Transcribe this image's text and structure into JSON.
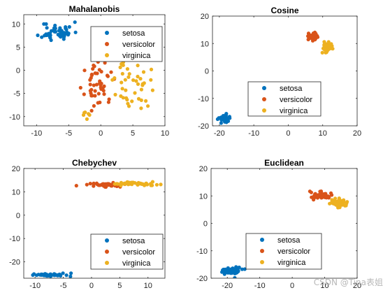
{
  "colors": {
    "setosa": "#0072BD",
    "versicolor": "#D95319",
    "virginica": "#EDB120"
  },
  "watermark": "CSDN @Tina表姐",
  "chart_data": [
    {
      "type": "scatter",
      "title": "Mahalanobis",
      "xlim": [
        -12,
        10
      ],
      "ylim": [
        -12,
        12
      ],
      "xticks": [
        -10,
        -5,
        0,
        5,
        10
      ],
      "yticks": [
        -10,
        -5,
        0,
        5,
        10
      ],
      "legend_position": "top-right",
      "series": [
        {
          "name": "setosa",
          "clusters": [
            {
              "cx": -6.8,
              "cy": 8.3,
              "sx": 1.6,
              "sy": 1.4,
              "n": 50,
              "seed": 11
            }
          ]
        },
        {
          "name": "versicolor",
          "clusters": [
            {
              "cx": -0.3,
              "cy": -3.2,
              "sx": 1.4,
              "sy": 2.9,
              "n": 50,
              "seed": 23
            }
          ]
        },
        {
          "name": "virginica",
          "clusters": [
            {
              "cx": 5.0,
              "cy": -3.2,
              "sx": 1.8,
              "sy": 3.5,
              "n": 44,
              "seed": 37
            },
            {
              "cx": -2.5,
              "cy": -9.8,
              "sx": 0.6,
              "sy": 1.0,
              "n": 6,
              "seed": 41
            }
          ]
        }
      ]
    },
    {
      "type": "scatter",
      "title": "Cosine",
      "xlim": [
        -22,
        20
      ],
      "ylim": [
        -20,
        20
      ],
      "xticks": [
        -20,
        -10,
        0,
        10,
        20
      ],
      "yticks": [
        -20,
        -10,
        0,
        10,
        20
      ],
      "legend_position": "bottom-center",
      "series": [
        {
          "name": "setosa",
          "clusters": [
            {
              "cx": -18.5,
              "cy": -17.2,
              "sx": 1.0,
              "sy": 1.0,
              "n": 50,
              "seed": 53
            }
          ]
        },
        {
          "name": "versicolor",
          "clusters": [
            {
              "cx": 7.0,
              "cy": 12.5,
              "sx": 1.1,
              "sy": 1.1,
              "n": 50,
              "seed": 61
            }
          ]
        },
        {
          "name": "virginica",
          "clusters": [
            {
              "cx": 11.5,
              "cy": 8.5,
              "sx": 1.0,
              "sy": 1.2,
              "n": 50,
              "seed": 71
            }
          ]
        }
      ]
    },
    {
      "type": "scatter",
      "title": "Chebychev",
      "xlim": [
        -12,
        13
      ],
      "ylim": [
        -27,
        20
      ],
      "xticks": [
        -10,
        -5,
        0,
        5,
        10
      ],
      "yticks": [
        -20,
        -10,
        0,
        10,
        20
      ],
      "legend_position": "bottom-right",
      "series": [
        {
          "name": "setosa",
          "clusters": [
            {
              "cx": -7.3,
              "cy": -25.6,
              "sx": 2.0,
              "sy": 0.4,
              "n": 50,
              "seed": 83
            }
          ]
        },
        {
          "name": "versicolor",
          "clusters": [
            {
              "cx": 1.7,
              "cy": 13.0,
              "sx": 2.9,
              "sy": 0.6,
              "n": 50,
              "seed": 97
            }
          ]
        },
        {
          "name": "virginica",
          "clusters": [
            {
              "cx": 7.5,
              "cy": 13.5,
              "sx": 2.7,
              "sy": 0.5,
              "n": 50,
              "seed": 101
            }
          ]
        }
      ]
    },
    {
      "type": "scatter",
      "title": "Euclidean",
      "xlim": [
        -25,
        20
      ],
      "ylim": [
        -20,
        20
      ],
      "xticks": [
        -20,
        -10,
        0,
        10,
        20
      ],
      "yticks": [
        -20,
        -10,
        0,
        10,
        20
      ],
      "legend_position": "bottom-center",
      "series": [
        {
          "name": "setosa",
          "clusters": [
            {
              "cx": -18.5,
              "cy": -17.5,
              "sx": 1.8,
              "sy": 0.9,
              "n": 50,
              "seed": 113
            }
          ]
        },
        {
          "name": "versicolor",
          "clusters": [
            {
              "cx": 9.0,
              "cy": 10.0,
              "sx": 2.0,
              "sy": 1.0,
              "n": 50,
              "seed": 127
            }
          ]
        },
        {
          "name": "virginica",
          "clusters": [
            {
              "cx": 14.0,
              "cy": 7.5,
              "sx": 2.0,
              "sy": 0.9,
              "n": 50,
              "seed": 131
            }
          ]
        }
      ]
    }
  ]
}
